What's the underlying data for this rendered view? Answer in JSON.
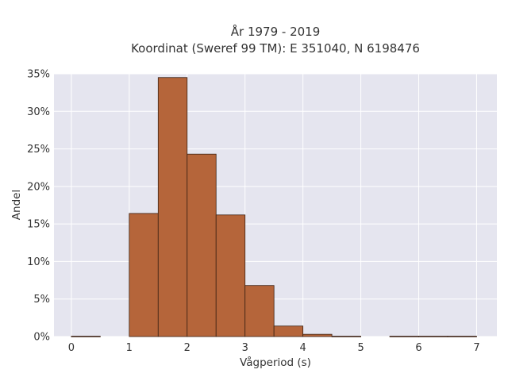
{
  "chart_data": {
    "type": "bar",
    "title_line1": "År 1979 - 2019",
    "title_line2": "Koordinat (Sweref 99 TM): E 351040, N 6198476",
    "xlabel": "Vågperiod (s)",
    "ylabel": "Andel",
    "xlim": [
      -0.3,
      7.35
    ],
    "ylim": [
      0,
      0.35
    ],
    "x_ticks": [
      0,
      1,
      2,
      3,
      4,
      5,
      6,
      7
    ],
    "y_ticks": [
      0,
      0.05,
      0.1,
      0.15,
      0.2,
      0.25,
      0.3,
      0.35
    ],
    "y_tick_labels": [
      "0%",
      "5%",
      "10%",
      "15%",
      "20%",
      "25%",
      "30%",
      "35%"
    ],
    "bin_width": 0.5,
    "bins": [
      {
        "x0": 0.0,
        "x1": 0.5,
        "value": 0.0005
      },
      {
        "x0": 0.5,
        "x1": 1.0,
        "value": 0.0
      },
      {
        "x0": 1.0,
        "x1": 1.5,
        "value": 0.164
      },
      {
        "x0": 1.5,
        "x1": 2.0,
        "value": 0.345
      },
      {
        "x0": 2.0,
        "x1": 2.5,
        "value": 0.243
      },
      {
        "x0": 2.5,
        "x1": 3.0,
        "value": 0.162
      },
      {
        "x0": 3.0,
        "x1": 3.5,
        "value": 0.068
      },
      {
        "x0": 3.5,
        "x1": 4.0,
        "value": 0.014
      },
      {
        "x0": 4.0,
        "x1": 4.5,
        "value": 0.003
      },
      {
        "x0": 4.5,
        "x1": 5.0,
        "value": 0.0005
      },
      {
        "x0": 5.0,
        "x1": 5.5,
        "value": 0.0
      },
      {
        "x0": 5.5,
        "x1": 6.0,
        "value": 0.0005
      },
      {
        "x0": 6.0,
        "x1": 6.5,
        "value": 0.0005
      },
      {
        "x0": 6.5,
        "x1": 7.0,
        "value": 0.0005
      }
    ],
    "grid": true,
    "colors": {
      "bar_fill": "#b5653a",
      "bar_stroke": "#3d2214",
      "plot_background": "#e5e5ef",
      "grid": "#ffffff"
    }
  }
}
